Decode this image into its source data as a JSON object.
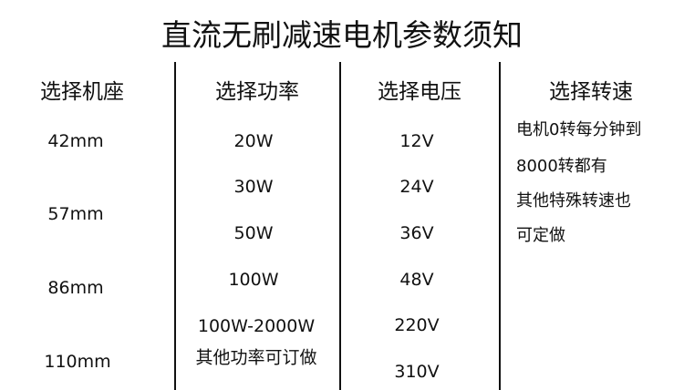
{
  "title": "直流无刷减速电机参数须知",
  "columns": [
    {
      "header": "选择机座",
      "items": [
        "42mm",
        "57mm",
        "86mm",
        "110mm"
      ]
    },
    {
      "header": "选择功率",
      "items": [
        "20W",
        "30W",
        "50W",
        "100W",
        "100W-2000W",
        "其他功率可订做"
      ]
    },
    {
      "header": "选择电压",
      "items": [
        "12V",
        "24V",
        "36V",
        "48V",
        "220V",
        "310V"
      ]
    },
    {
      "header": "选择转速",
      "items": [
        "电机0转每分钟到",
        "8000转都有",
        "其他特殊转速也",
        "可定做"
      ]
    }
  ]
}
